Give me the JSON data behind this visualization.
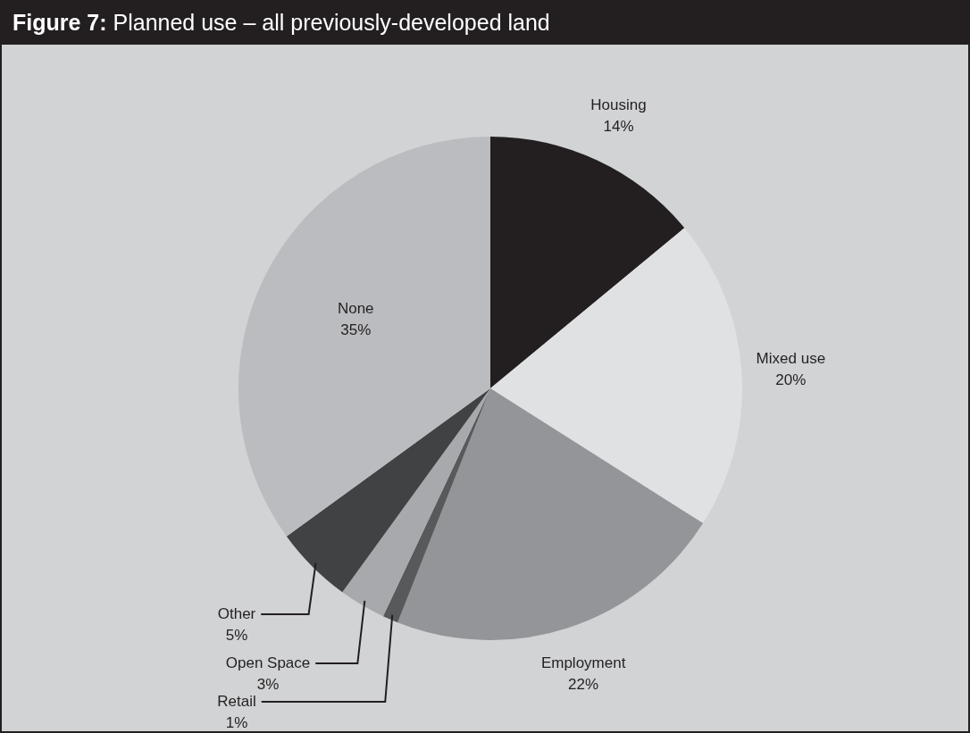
{
  "chart_data": {
    "type": "pie",
    "title": "Figure 7: Planned use – all previously-developed land",
    "categories": [
      "Housing",
      "Mixed use",
      "Employment",
      "Retail",
      "Open Space",
      "Other",
      "None"
    ],
    "values": [
      14,
      20,
      22,
      1,
      3,
      5,
      35
    ],
    "colors": [
      "#231f20",
      "#e0e1e3",
      "#949598",
      "#58595b",
      "#a7a9ac",
      "#414244",
      "#bbbcbf"
    ],
    "value_labels": [
      "14%",
      "20%",
      "22%",
      "1%",
      "3%",
      "5%",
      "35%"
    ],
    "legend": false
  }
}
